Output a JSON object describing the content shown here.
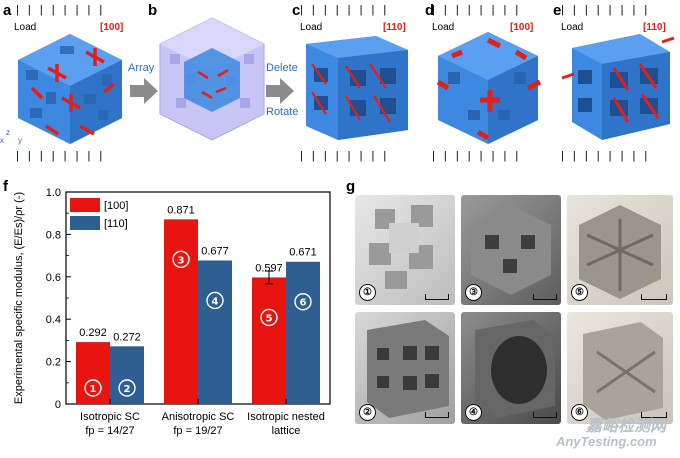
{
  "panels": {
    "a": {
      "label": "a",
      "load": "Load",
      "dir": "[100]"
    },
    "b": {
      "label": "b",
      "array": "Array"
    },
    "c": {
      "label": "c",
      "load": "Load",
      "dir": "[110]",
      "delete": "Delete",
      "rotate": "Rotate"
    },
    "d": {
      "label": "d",
      "load": "Load",
      "dir": "[100]"
    },
    "e": {
      "label": "e",
      "load": "Load",
      "dir": "[110]"
    },
    "f": {
      "label": "f"
    },
    "g": {
      "label": "g"
    }
  },
  "tick_marks": "| | | | | | | |",
  "axes_triad": {
    "x": "x",
    "y": "y",
    "z": "z"
  },
  "photos": {
    "numbers": [
      "①",
      "③",
      "⑤",
      "②",
      "④",
      "⑥"
    ]
  },
  "watermark": {
    "cn": "嘉峪检测网",
    "en": "AnyTesting.com"
  },
  "colors": {
    "blue": "#3d88e0",
    "red": "#e0201b",
    "bar_red": "#e8140f",
    "bar_blue": "#2f5f92",
    "ghost": "#b8b6ee"
  },
  "chart_data": {
    "type": "bar",
    "ylabel": "Experimental specific modulus, (E/E",
    "ylabel_full": "Experimental specific modulus, (E/Es)/ρr (-)",
    "ylim": [
      0,
      1.0
    ],
    "yticks": [
      "0",
      "0.2",
      "0.4",
      "0.6",
      "0.8",
      "1.0"
    ],
    "categories": [
      {
        "line1": "Isotropic SC",
        "line2": "fp = 14/27"
      },
      {
        "line1": "Anisotropic SC",
        "line2": "fp = 19/27"
      },
      {
        "line1": "Isotropic nested",
        "line2": "lattice"
      }
    ],
    "series": [
      {
        "name": "[100]",
        "values": [
          0.292,
          0.871,
          0.597
        ],
        "labels": [
          "0.292",
          "0.871",
          "0.597"
        ],
        "markers": [
          "①",
          "③",
          "⑤"
        ]
      },
      {
        "name": "[110]",
        "values": [
          0.272,
          0.677,
          0.671
        ],
        "labels": [
          "0.272",
          "0.677",
          "0.671"
        ],
        "markers": [
          "②",
          "④",
          "⑥"
        ]
      }
    ],
    "error": {
      "series": 0,
      "category": 2,
      "value": 0.03
    }
  }
}
